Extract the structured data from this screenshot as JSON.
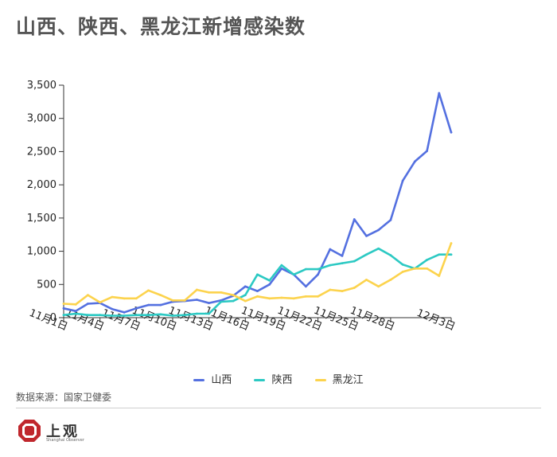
{
  "title": "山西、陕西、黑龙江新增感染数",
  "source": "数据来源：国家卫健委",
  "logo": {
    "name": "上观",
    "subtitle": "Shanghai Observer"
  },
  "colors": {
    "shanxi": "#5470e0",
    "shaanxi": "#2cc9c3",
    "heilongjiang": "#fcd34d",
    "axis": "#333333",
    "grid": "#e8e8e8"
  },
  "chart_data": {
    "type": "line",
    "title": "山西、陕西、黑龙江新增感染数",
    "xlabel": "",
    "ylabel": "",
    "ylim": [
      0,
      3500
    ],
    "yticks": [
      0,
      500,
      1000,
      1500,
      2000,
      2500,
      3000,
      3500
    ],
    "ytick_labels": [
      "0",
      "500",
      "1,000",
      "1,500",
      "2,000",
      "2,500",
      "3,000",
      "3,500"
    ],
    "x": [
      "11月1日",
      "11月2日",
      "11月3日",
      "11月4日",
      "11月5日",
      "11月6日",
      "11月7日",
      "11月8日",
      "11月9日",
      "11月10日",
      "11月11日",
      "11月12日",
      "11月13日",
      "11月14日",
      "11月15日",
      "11月16日",
      "11月17日",
      "11月18日",
      "11月19日",
      "11月20日",
      "11月21日",
      "11月22日",
      "11月23日",
      "11月24日",
      "11月25日",
      "11月26日",
      "11月27日",
      "11月28日",
      "11月29日",
      "11月30日",
      "12月1日",
      "12月2日",
      "12月3日"
    ],
    "xtick_labels": [
      "11月1日",
      "11月4日",
      "11月7日",
      "11月10日",
      "11月13日",
      "11月16日",
      "11月19日",
      "11月22日",
      "11月25日",
      "11月28日",
      "12月3日"
    ],
    "legend_position": "bottom",
    "grid": false,
    "series": [
      {
        "name": "山西",
        "color_key": "shanxi",
        "values": [
          140,
          100,
          210,
          220,
          130,
          80,
          140,
          190,
          190,
          240,
          250,
          270,
          220,
          260,
          330,
          470,
          400,
          500,
          740,
          650,
          470,
          650,
          1030,
          930,
          1480,
          1230,
          1320,
          1470,
          2060,
          2350,
          2510,
          3380,
          2790
        ]
      },
      {
        "name": "陕西",
        "color_key": "shaanxi",
        "values": [
          40,
          60,
          40,
          40,
          30,
          30,
          40,
          40,
          50,
          30,
          40,
          60,
          60,
          240,
          250,
          340,
          650,
          560,
          790,
          650,
          730,
          730,
          790,
          820,
          850,
          950,
          1040,
          940,
          800,
          740,
          870,
          950,
          950
        ]
      },
      {
        "name": "黑龙江",
        "color_key": "heilongjiang",
        "values": [
          210,
          200,
          340,
          230,
          310,
          290,
          290,
          410,
          340,
          260,
          260,
          420,
          380,
          380,
          340,
          250,
          320,
          290,
          300,
          290,
          320,
          320,
          420,
          400,
          450,
          570,
          470,
          570,
          690,
          740,
          740,
          630,
          1120
        ]
      }
    ]
  }
}
